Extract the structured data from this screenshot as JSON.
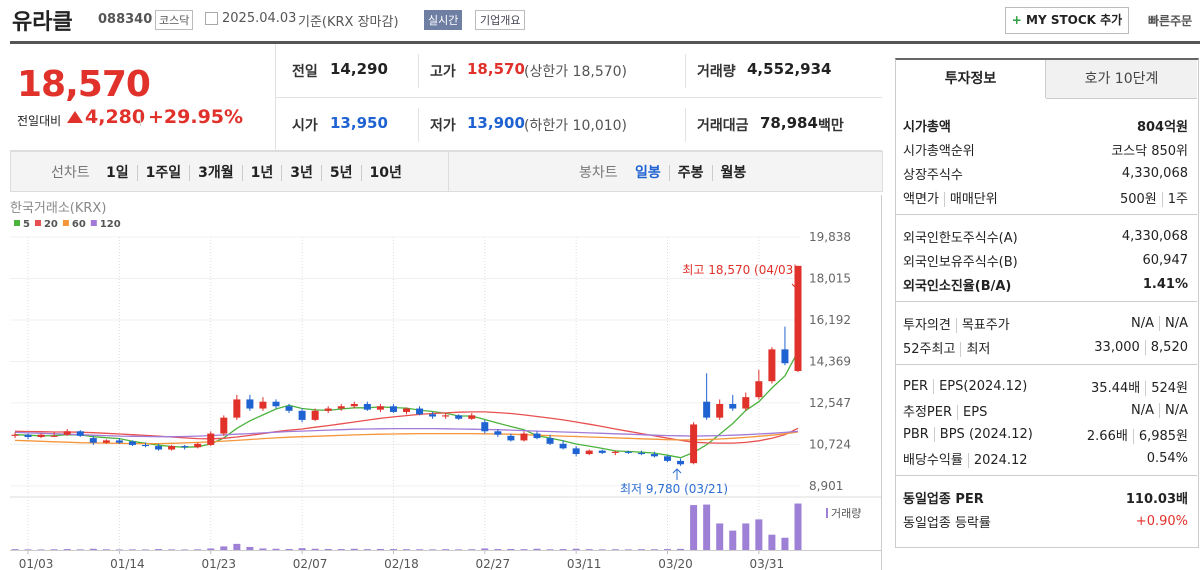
{
  "header": {
    "name": "유라클",
    "code": "088340",
    "market": "코스닥",
    "date": "2025.04.03",
    "basis": "기준(KRX 장마감)",
    "realtime": "실시간",
    "overview": "기업개요",
    "my_stock": "MY STOCK 추가",
    "quick_order": "빠른주문"
  },
  "summary": {
    "price": "18,570",
    "change_label": "전일대비",
    "change": "4,280",
    "change_rate": "+29.95%",
    "items": [
      {
        "label": "전일",
        "value": "14,290"
      },
      {
        "label": "고가",
        "value": "18,570",
        "note": "(상한가 18,570)"
      },
      {
        "label": "거래량",
        "value": "4,552,934"
      },
      {
        "label": "시가",
        "value": "13,950"
      },
      {
        "label": "저가",
        "value": "13,900",
        "note": "(하한가 10,010)"
      },
      {
        "label": "거래대금",
        "value": "78,984",
        "unit": "백만"
      }
    ]
  },
  "periods": {
    "line_label": "선차트",
    "line": [
      "1일",
      "1주일",
      "3개월",
      "1년",
      "3년",
      "5년",
      "10년"
    ],
    "candle_label": "봉차트",
    "candle": [
      "일봉",
      "주봉",
      "월봉"
    ]
  },
  "side": {
    "tabs": [
      "투자정보",
      "호가 10단계"
    ],
    "groups": [
      [
        {
          "labels": [
            "시가총액"
          ],
          "values": [
            "804억원"
          ],
          "bold": true
        },
        {
          "labels": [
            "시가총액순위"
          ],
          "values": [
            "코스닥 850위"
          ]
        },
        {
          "labels": [
            "상장주식수"
          ],
          "values": [
            "4,330,068"
          ]
        },
        {
          "labels": [
            "액면가",
            "매매단위"
          ],
          "values": [
            "500원",
            "1주"
          ]
        }
      ],
      [
        {
          "labels": [
            "외국인한도주식수(A)"
          ],
          "values": [
            "4,330,068"
          ]
        },
        {
          "labels": [
            "외국인보유주식수(B)"
          ],
          "values": [
            "60,947"
          ]
        },
        {
          "labels": [
            "외국인소진율(B/A)"
          ],
          "values": [
            "1.41%"
          ],
          "bold": true
        }
      ],
      [
        {
          "labels": [
            "투자의견",
            "목표주가"
          ],
          "values": [
            "N/A",
            "N/A"
          ]
        },
        {
          "labels": [
            "52주최고",
            "최저"
          ],
          "values": [
            "33,000",
            "8,520"
          ]
        }
      ],
      [
        {
          "labels": [
            "PER",
            "EPS(2024.12)"
          ],
          "values": [
            "35.44배",
            "524원"
          ]
        },
        {
          "labels": [
            "추정PER",
            "EPS"
          ],
          "values": [
            "N/A",
            "N/A"
          ]
        },
        {
          "labels": [
            "PBR",
            "BPS (2024.12)"
          ],
          "values": [
            "2.66배",
            "6,985원"
          ]
        },
        {
          "labels": [
            "배당수익률",
            "2024.12"
          ],
          "values": [
            "0.54%"
          ]
        }
      ],
      [
        {
          "labels": [
            "동일업종 PER"
          ],
          "values": [
            "110.03배"
          ],
          "bold": true
        },
        {
          "labels": [
            "동일업종 등락률"
          ],
          "values": [
            "+0.90%"
          ],
          "color": "#e0312b"
        }
      ]
    ]
  },
  "chart_data": {
    "type": "candlestick",
    "source": "한국거래소(KRX)",
    "up_color": "#e0312b",
    "down_color": "#1f63d2",
    "grid": true,
    "categories": [
      null,
      "01/03",
      null,
      null,
      null,
      null,
      null,
      null,
      "01/14",
      null,
      null,
      null,
      null,
      null,
      null,
      "01/23",
      null,
      null,
      null,
      null,
      null,
      null,
      "02/07",
      null,
      null,
      null,
      null,
      null,
      null,
      "02/18",
      null,
      null,
      null,
      null,
      null,
      null,
      "02/27",
      null,
      null,
      null,
      null,
      null,
      null,
      "03/11",
      null,
      null,
      null,
      null,
      null,
      null,
      "03/20",
      null,
      null,
      null,
      null,
      null,
      null,
      "03/31",
      null,
      null,
      null
    ],
    "open": [
      11100,
      11150,
      11050,
      11100,
      11150,
      11300,
      11000,
      10800,
      10900,
      10850,
      10700,
      10650,
      10500,
      10650,
      10600,
      10700,
      11200,
      11900,
      12700,
      12300,
      12600,
      12400,
      12200,
      11800,
      12200,
      12300,
      12400,
      12500,
      12250,
      12400,
      12150,
      12300,
      12050,
      11950,
      12000,
      11850,
      11700,
      11300,
      11100,
      10900,
      11200,
      11000,
      10750,
      10550,
      10300,
      10450,
      10350,
      10400,
      10350,
      10300,
      10200,
      10000,
      9900,
      12600,
      11900,
      12500,
      12300,
      12800,
      13500,
      14900,
      13950
    ],
    "high": [
      11250,
      11200,
      11200,
      11250,
      11400,
      11350,
      11100,
      10950,
      11000,
      10900,
      10800,
      10750,
      10700,
      10700,
      10800,
      11300,
      12000,
      12900,
      12900,
      12800,
      12700,
      12500,
      12300,
      12300,
      12400,
      12500,
      12600,
      12600,
      12500,
      12500,
      12350,
      12400,
      12150,
      12100,
      12050,
      12100,
      11800,
      11400,
      11200,
      11300,
      11300,
      11150,
      10900,
      10650,
      10500,
      10500,
      10450,
      10450,
      10450,
      10400,
      10250,
      10100,
      11700,
      13850,
      12700,
      12900,
      13000,
      14000,
      15000,
      15900,
      18570
    ],
    "low": [
      11000,
      10950,
      11000,
      11050,
      11100,
      11050,
      10700,
      10750,
      10750,
      10650,
      10600,
      10450,
      10450,
      10500,
      10550,
      10650,
      11100,
      11800,
      12200,
      12200,
      12300,
      12100,
      11700,
      11750,
      12100,
      12200,
      12300,
      12200,
      12150,
      12100,
      12050,
      12000,
      11850,
      11850,
      11800,
      11800,
      11200,
      11050,
      10850,
      10850,
      10950,
      10700,
      10500,
      10200,
      10250,
      10300,
      10250,
      10300,
      10250,
      10150,
      9950,
      9780,
      9850,
      11800,
      11800,
      12200,
      12200,
      12700,
      13400,
      14200,
      13900
    ],
    "close": [
      11150,
      11050,
      11150,
      11100,
      11300,
      11100,
      10800,
      10900,
      10800,
      10700,
      10650,
      10500,
      10650,
      10600,
      10750,
      11200,
      11900,
      12700,
      12300,
      12600,
      12400,
      12200,
      11800,
      12200,
      12300,
      12400,
      12500,
      12250,
      12400,
      12150,
      12300,
      12050,
      11950,
      12000,
      11850,
      12000,
      11300,
      11150,
      10900,
      11200,
      11000,
      10750,
      10550,
      10300,
      10450,
      10350,
      10400,
      10350,
      10300,
      10200,
      10000,
      9850,
      11600,
      11900,
      12500,
      12300,
      12800,
      13500,
      14900,
      14290,
      18570
    ],
    "ylim": [
      8500,
      19838
    ],
    "yticks": [
      {
        "value": 8901,
        "label": "8,901"
      },
      {
        "value": 10724,
        "label": "10,724"
      },
      {
        "value": 12547,
        "label": "12,547"
      },
      {
        "value": 14369,
        "label": "14,369"
      },
      {
        "value": 16192,
        "label": "16,192"
      },
      {
        "value": 18015,
        "label": "18,015"
      },
      {
        "value": 19838,
        "label": "19,838"
      }
    ],
    "series": [
      {
        "name": "5",
        "color": "#4cb33d",
        "values": [
          11150,
          11130,
          11100,
          11110,
          11150,
          11140,
          11060,
          11020,
          10980,
          10860,
          10770,
          10690,
          10630,
          10600,
          10620,
          10740,
          11010,
          11430,
          11760,
          12020,
          12280,
          12440,
          12300,
          12240,
          12220,
          12280,
          12330,
          12330,
          12370,
          12340,
          12320,
          12230,
          12170,
          12090,
          11970,
          11970,
          11820,
          11660,
          11510,
          11370,
          11110,
          11000,
          10880,
          10740,
          10650,
          10550,
          10440,
          10410,
          10380,
          10340,
          10250,
          10140,
          10370,
          10710,
          11170,
          11640,
          12220,
          12600,
          13200,
          13740,
          14810
        ]
      },
      {
        "name": "20",
        "color": "#e85050",
        "values": [
          11300,
          11290,
          11280,
          11270,
          11270,
          11260,
          11240,
          11210,
          11180,
          11150,
          11120,
          11090,
          11050,
          11010,
          10980,
          10970,
          10990,
          11050,
          11120,
          11200,
          11280,
          11350,
          11400,
          11480,
          11550,
          11630,
          11710,
          11790,
          11870,
          11930,
          11990,
          12040,
          12080,
          12110,
          12140,
          12150,
          12150,
          12120,
          12080,
          12020,
          11950,
          11880,
          11800,
          11710,
          11610,
          11510,
          11400,
          11300,
          11200,
          11100,
          11000,
          10900,
          10820,
          10790,
          10780,
          10780,
          10810,
          10880,
          10990,
          11150,
          11430
        ]
      },
      {
        "name": "60",
        "color": "#f5963a",
        "values": [
          10900,
          10880,
          10860,
          10840,
          10820,
          10800,
          10790,
          10780,
          10770,
          10760,
          10760,
          10760,
          10770,
          10790,
          10810,
          10840,
          10870,
          10900,
          10940,
          10980,
          11010,
          11040,
          11060,
          11080,
          11100,
          11120,
          11140,
          11160,
          11170,
          11180,
          11190,
          11200,
          11200,
          11200,
          11200,
          11200,
          11190,
          11180,
          11170,
          11150,
          11130,
          11110,
          11090,
          11070,
          11050,
          11030,
          11010,
          10990,
          10970,
          10950,
          10930,
          10920,
          10920,
          10940,
          10960,
          10990,
          11030,
          11080,
          11130,
          11190,
          11270
        ]
      },
      {
        "name": "120",
        "color": "#a27bd8",
        "values": [
          11250,
          11230,
          11210,
          11190,
          11170,
          11150,
          11130,
          11110,
          11090,
          11080,
          11070,
          11060,
          11060,
          11070,
          11090,
          11110,
          11140,
          11170,
          11200,
          11230,
          11260,
          11290,
          11310,
          11330,
          11350,
          11370,
          11390,
          11400,
          11410,
          11420,
          11420,
          11420,
          11420,
          11410,
          11400,
          11390,
          11380,
          11370,
          11350,
          11330,
          11310,
          11290,
          11270,
          11250,
          11230,
          11210,
          11190,
          11170,
          11150,
          11130,
          11110,
          11100,
          11090,
          11100,
          11110,
          11130,
          11150,
          11180,
          11210,
          11250,
          11300
        ]
      }
    ],
    "volume": {
      "name": "거래량",
      "color": "#9e80d6",
      "ylim": [
        0,
        4800000
      ],
      "values": [
        80000,
        60000,
        50000,
        70000,
        90000,
        60000,
        120000,
        70000,
        50000,
        60000,
        50000,
        90000,
        60000,
        50000,
        70000,
        150000,
        350000,
        600000,
        300000,
        150000,
        120000,
        100000,
        180000,
        120000,
        100000,
        90000,
        120000,
        80000,
        100000,
        90000,
        80000,
        70000,
        60000,
        80000,
        60000,
        70000,
        150000,
        90000,
        100000,
        80000,
        120000,
        70000,
        90000,
        120000,
        80000,
        60000,
        70000,
        60000,
        80000,
        70000,
        90000,
        110000,
        4400000,
        4450000,
        2600000,
        1900000,
        2600000,
        3000000,
        1500000,
        1200000,
        4552934
      ]
    },
    "annotations": [
      {
        "text": "최고 18,570 (04/03)",
        "color": "#e0312b"
      },
      {
        "text": "최저 9,780 (03/21)",
        "color": "#2d6dd2"
      }
    ]
  }
}
